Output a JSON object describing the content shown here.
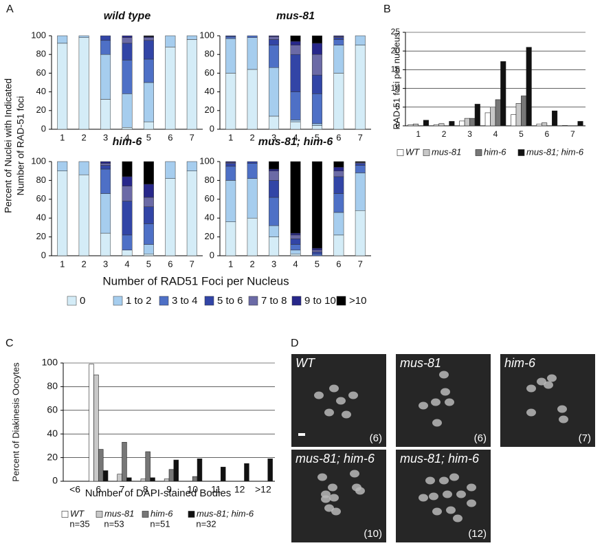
{
  "chart_data": [
    {
      "type": "stacked_bar",
      "panel": "A",
      "y_label": [
        "Percent of Nuclei with Indicated",
        "Number of RAD-51 foci"
      ],
      "x_label": "Number of RAD51 Foci per Nucleus",
      "categories": [
        "1",
        "2",
        "3",
        "4",
        "5",
        "6",
        "7"
      ],
      "ylim": [
        0,
        100
      ],
      "yticks": [
        0,
        20,
        40,
        60,
        80,
        100
      ],
      "series": [
        {
          "name": "0",
          "color": "#d4ecf7"
        },
        {
          "name": "1 to 2",
          "color": "#a6cdee"
        },
        {
          "name": "3 to 4",
          "color": "#4e70c6"
        },
        {
          "name": "5 to 6",
          "color": "#3245a6"
        },
        {
          "name": "7 to 8",
          "color": "#6b6aa6"
        },
        {
          "name": "9 to 10",
          "color": "#27278a"
        },
        {
          "name": ">10",
          "color": "#000000"
        }
      ],
      "subplots": [
        {
          "title": "wild type",
          "values": [
            [
              92,
              98,
              32,
              2,
              8,
              88,
              96
            ],
            [
              8,
              2,
              48,
              36,
              42,
              12,
              4
            ],
            [
              0,
              0,
              15,
              36,
              25,
              0,
              0
            ],
            [
              0,
              0,
              5,
              18,
              20,
              0,
              0
            ],
            [
              0,
              0,
              0,
              6,
              3,
              0,
              0
            ],
            [
              0,
              0,
              0,
              2,
              1,
              0,
              0
            ],
            [
              0,
              0,
              0,
              0,
              1,
              0,
              0
            ]
          ]
        },
        {
          "title": "mus-81",
          "values": [
            [
              60,
              64,
              14,
              8,
              4,
              60,
              90
            ],
            [
              37,
              34,
              52,
              2,
              2,
              30,
              10
            ],
            [
              2,
              2,
              24,
              30,
              32,
              6,
              0
            ],
            [
              1,
              0,
              6,
              40,
              20,
              2,
              0
            ],
            [
              0,
              0,
              3,
              10,
              22,
              1,
              0
            ],
            [
              0,
              0,
              1,
              4,
              12,
              1,
              0
            ],
            [
              0,
              0,
              0,
              6,
              8,
              0,
              0
            ]
          ]
        },
        {
          "title": "him-6",
          "values": [
            [
              90,
              86,
              24,
              6,
              2,
              82,
              90
            ],
            [
              10,
              14,
              42,
              0,
              10,
              18,
              10
            ],
            [
              0,
              0,
              26,
              16,
              22,
              0,
              0
            ],
            [
              0,
              0,
              4,
              36,
              18,
              0,
              0
            ],
            [
              0,
              0,
              2,
              16,
              10,
              0,
              0
            ],
            [
              0,
              0,
              2,
              10,
              14,
              0,
              0
            ],
            [
              0,
              0,
              0,
              16,
              24,
              0,
              0
            ]
          ]
        },
        {
          "title": "mus-81; him-6",
          "values": [
            [
              36,
              40,
              20,
              2,
              0,
              22,
              48
            ],
            [
              44,
              42,
              12,
              4,
              0,
              24,
              40
            ],
            [
              15,
              16,
              30,
              6,
              2,
              20,
              8
            ],
            [
              3,
              2,
              18,
              6,
              2,
              18,
              2
            ],
            [
              1,
              0,
              10,
              4,
              2,
              6,
              1
            ],
            [
              1,
              0,
              2,
              2,
              2,
              4,
              0
            ],
            [
              0,
              0,
              8,
              76,
              92,
              6,
              1
            ]
          ]
        }
      ]
    },
    {
      "type": "grouped_bar",
      "panel": "B",
      "y_label": "RAD-51 foci per nucleus",
      "categories": [
        "1",
        "2",
        "3",
        "4",
        "5",
        "6",
        "7"
      ],
      "ylim": [
        0,
        25
      ],
      "yticks": [
        0,
        5,
        10,
        15,
        20,
        25
      ],
      "grid": true,
      "series": [
        {
          "name": "WT",
          "color": "#ffffff",
          "values": [
            0.3,
            0.3,
            1.3,
            3.5,
            3,
            0.5,
            0.1
          ]
        },
        {
          "name": "mus-81",
          "color": "#c8c8c8",
          "values": [
            0.5,
            0.6,
            2,
            5,
            6,
            0.8,
            0
          ]
        },
        {
          "name": "him-6",
          "color": "#777777",
          "values": [
            0,
            0,
            2,
            7,
            8,
            0,
            0
          ]
        },
        {
          "name": "mus-81; him-6",
          "color": "#111111",
          "values": [
            1.5,
            1.2,
            5.8,
            17.2,
            21,
            4,
            1.2
          ]
        }
      ]
    },
    {
      "type": "grouped_bar",
      "panel": "C",
      "y_label": "Percent of Diakinesis Oocytes",
      "x_label": "Number of DAPI-stained Bodies",
      "categories": [
        "<6",
        "6",
        "7",
        "8",
        "9",
        "10",
        "11",
        "12",
        ">12"
      ],
      "ylim": [
        0,
        100
      ],
      "yticks": [
        0,
        20,
        40,
        60,
        80,
        100
      ],
      "grid": true,
      "series": [
        {
          "name": "WT",
          "n_label": "n=35",
          "color": "#ffffff",
          "values": [
            0,
            99,
            0,
            0,
            0,
            0,
            0,
            0,
            0
          ]
        },
        {
          "name": "mus-81",
          "n_label": "n=53",
          "color": "#c8c8c8",
          "values": [
            0,
            90,
            6,
            2,
            2,
            0,
            0,
            0,
            0
          ]
        },
        {
          "name": "him-6",
          "n_label": "n=51",
          "color": "#777777",
          "values": [
            0,
            27,
            33,
            25,
            10,
            4,
            0,
            0,
            0
          ]
        },
        {
          "name": "mus-81; him-6",
          "n_label": "n=32",
          "color": "#111111",
          "values": [
            0,
            9,
            3,
            3,
            18,
            19,
            12,
            15,
            19
          ]
        }
      ]
    }
  ],
  "micrographs": {
    "panel": "D",
    "images": [
      {
        "label": "WT",
        "count": "(6)"
      },
      {
        "label": "mus-81",
        "count": "(6)"
      },
      {
        "label": "him-6",
        "count": "(7)"
      },
      {
        "label": "mus-81; him-6",
        "count": "(10)"
      },
      {
        "label": "mus-81; him-6",
        "count": "(12)"
      }
    ]
  }
}
